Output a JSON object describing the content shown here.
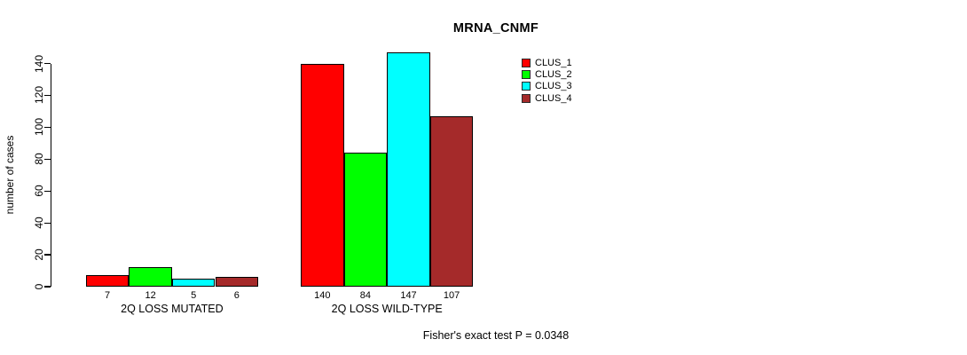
{
  "chart_data": {
    "type": "bar",
    "title": "MRNA_CNMF",
    "ylabel": "number of cases",
    "xlabel": "",
    "categories": [
      "2Q LOSS MUTATED",
      "2Q LOSS WILD-TYPE"
    ],
    "series": [
      {
        "name": "CLUS_1",
        "color": "#FF0000",
        "values": [
          7,
          140
        ]
      },
      {
        "name": "CLUS_2",
        "color": "#00FF00",
        "values": [
          12,
          84
        ]
      },
      {
        "name": "CLUS_3",
        "color": "#00FFFF",
        "values": [
          5,
          147
        ]
      },
      {
        "name": "CLUS_4",
        "color": "#A52A2A",
        "values": [
          6,
          107
        ]
      }
    ],
    "yticks": [
      0,
      20,
      40,
      60,
      80,
      100,
      120,
      140
    ],
    "ylim": [
      0,
      147
    ],
    "grid": false,
    "legend_position": "top-right",
    "axis_color": "#000000",
    "footnote": "Fisher's exact test P = 0.0348"
  }
}
